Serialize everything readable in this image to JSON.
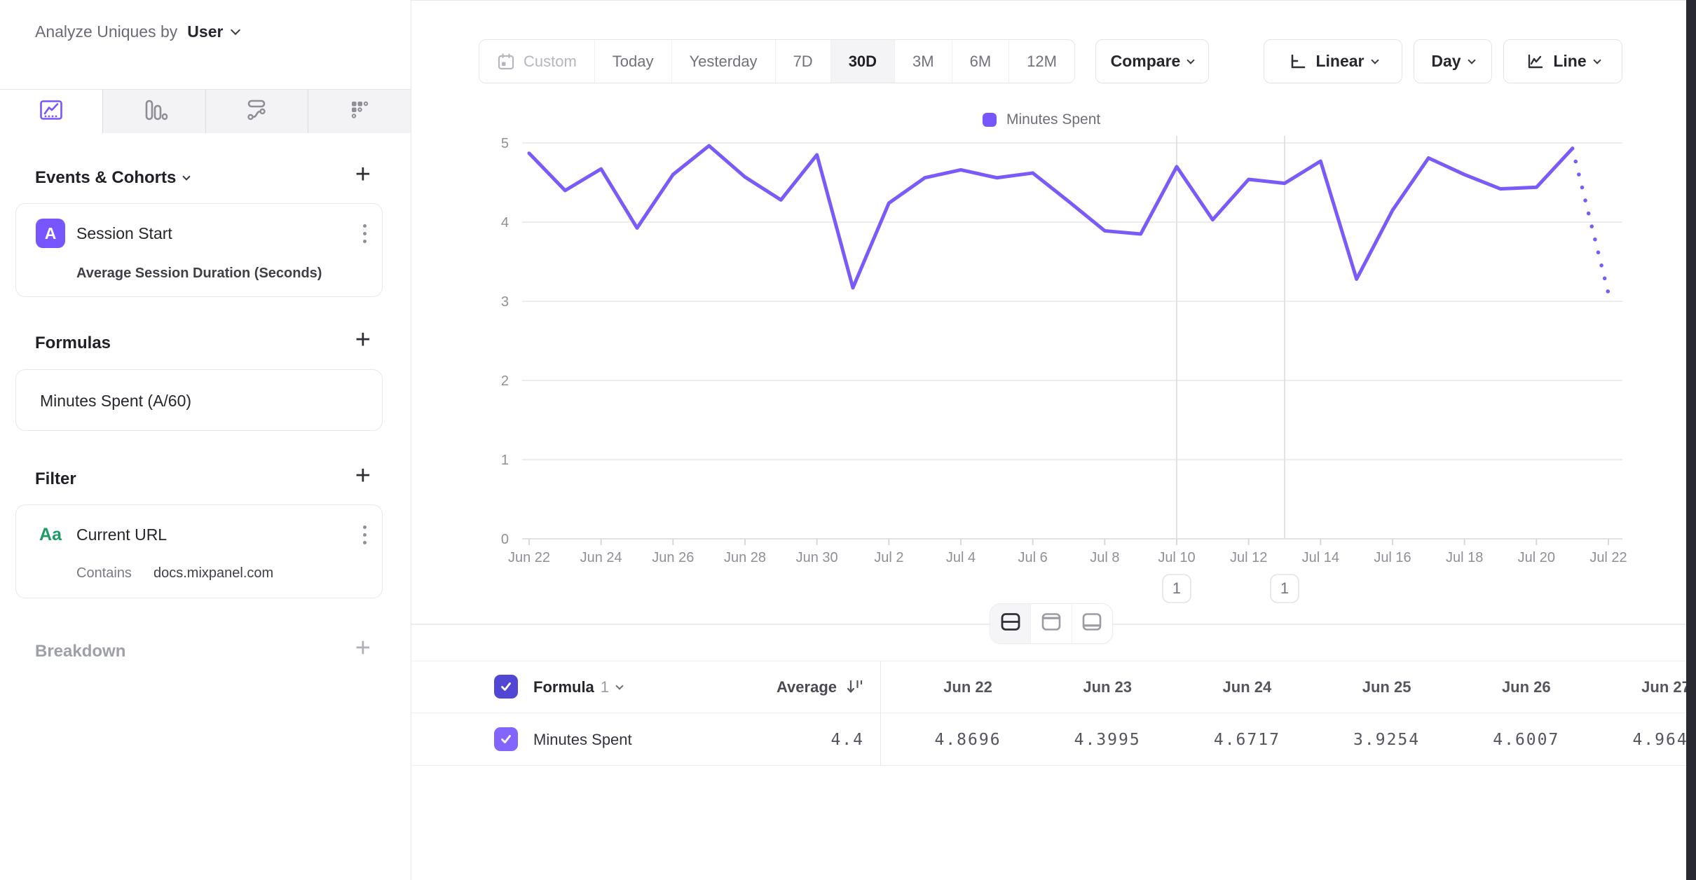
{
  "sidebar": {
    "analyze_by_label": "Analyze Uniques by",
    "analyze_by_value": "User",
    "tabs": [
      {
        "icon": "insights-line-chart",
        "active": true
      },
      {
        "icon": "bar-chart",
        "active": false
      },
      {
        "icon": "flows",
        "active": false
      },
      {
        "icon": "retention-grid",
        "active": false
      }
    ],
    "events_heading": "Events & Cohorts",
    "event_card": {
      "badge": "A",
      "title": "Session Start",
      "subtitle": "Average Session Duration (Seconds)"
    },
    "formulas_heading": "Formulas",
    "formula_card": {
      "title": "Minutes Spent (A/60)"
    },
    "filter_heading": "Filter",
    "filter_card": {
      "badge": "Aa",
      "title": "Current URL",
      "operator": "Contains",
      "value": "docs.mixpanel.com"
    },
    "breakdown_heading": "Breakdown"
  },
  "toolbar": {
    "date_ranges": [
      "Custom",
      "Today",
      "Yesterday",
      "7D",
      "30D",
      "3M",
      "6M",
      "12M"
    ],
    "active_range": "30D",
    "disabled_range": "Custom",
    "compare_label": "Compare",
    "scale_label": "Linear",
    "granularity_label": "Day",
    "chart_type_label": "Line"
  },
  "chart_data": {
    "type": "line",
    "legend": "Minutes Spent",
    "legend_position": "top-center",
    "ylim": [
      0,
      5
    ],
    "yticks": [
      0,
      1,
      2,
      3,
      4,
      5
    ],
    "x_tick_every": 2,
    "grid": "horizontal",
    "x": [
      "Jun 22",
      "Jun 23",
      "Jun 24",
      "Jun 25",
      "Jun 26",
      "Jun 27",
      "Jun 28",
      "Jun 29",
      "Jun 30",
      "Jul 1",
      "Jul 2",
      "Jul 3",
      "Jul 4",
      "Jul 5",
      "Jul 6",
      "Jul 7",
      "Jul 8",
      "Jul 9",
      "Jul 10",
      "Jul 11",
      "Jul 12",
      "Jul 13",
      "Jul 14",
      "Jul 15",
      "Jul 16",
      "Jul 17",
      "Jul 18",
      "Jul 19",
      "Jul 20",
      "Jul 21",
      "Jul 22"
    ],
    "series": [
      {
        "name": "Minutes Spent",
        "values": [
          4.8696,
          4.3995,
          4.6717,
          3.9254,
          4.6007,
          4.964,
          4.57,
          4.28,
          4.85,
          3.17,
          4.24,
          4.56,
          4.66,
          4.56,
          4.62,
          4.26,
          3.89,
          3.85,
          4.7,
          4.03,
          4.54,
          4.49,
          4.77,
          3.28,
          4.15,
          4.81,
          4.6,
          4.42,
          4.44,
          4.93,
          3.1
        ],
        "dotted_from_index": 29
      }
    ],
    "annotations": [
      {
        "date": "Jul 10",
        "label": "1"
      },
      {
        "date": "Jul 13",
        "label": "1"
      }
    ]
  },
  "view_switcher": {
    "modes": [
      "split-view",
      "chart-top-view",
      "chart-bottom-view"
    ],
    "active_mode": "split-view"
  },
  "table": {
    "formula_label": "Formula",
    "formula_index": "1",
    "average_label": "Average",
    "date_columns": [
      "Jun 22",
      "Jun 23",
      "Jun 24",
      "Jun 25",
      "Jun 26",
      "Jun 27"
    ],
    "row": {
      "name": "Minutes Spent",
      "average": "4.4",
      "values": [
        "4.8696",
        "4.3995",
        "4.6717",
        "3.9254",
        "4.6007",
        "4.9640"
      ]
    }
  },
  "colors": {
    "accent": "#7856FF",
    "line": "#7A5AF8",
    "green": "#1C9B63",
    "header_checkbox": "#5247D5",
    "row_checkbox": "#8264FF",
    "dark_edge": "#292931",
    "gridline": "#EDEDF0",
    "axis_text": "#8F8F97"
  }
}
